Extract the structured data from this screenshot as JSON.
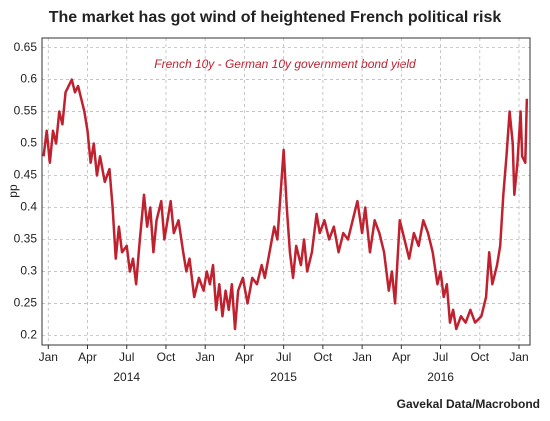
{
  "chart_data": {
    "type": "line",
    "title": "The market has got wind of heightened French political risk",
    "annotation": "French 10y - German 10y government bond yield",
    "ylabel": "pp",
    "source": "Gavekal Data/Macrobond",
    "x": [
      2013.97,
      2013.99,
      2014.01,
      2014.03,
      2014.05,
      2014.07,
      2014.09,
      2014.11,
      2014.13,
      2014.15,
      2014.17,
      2014.19,
      2014.21,
      2014.23,
      2014.25,
      2014.27,
      2014.29,
      2014.31,
      2014.33,
      2014.36,
      2014.39,
      2014.41,
      2014.43,
      2014.45,
      2014.47,
      2014.5,
      2014.52,
      2014.54,
      2014.56,
      2014.58,
      2014.61,
      2014.63,
      2014.65,
      2014.67,
      2014.69,
      2014.72,
      2014.74,
      2014.76,
      2014.78,
      2014.8,
      2014.83,
      2014.86,
      2014.88,
      2014.9,
      2014.93,
      2014.96,
      2014.99,
      2015.01,
      2015.03,
      2015.05,
      2015.07,
      2015.09,
      2015.11,
      2015.13,
      2015.15,
      2015.17,
      2015.19,
      2015.21,
      2015.24,
      2015.27,
      2015.3,
      2015.33,
      2015.36,
      2015.38,
      2015.41,
      2015.44,
      2015.46,
      2015.48,
      2015.5,
      2015.52,
      2015.54,
      2015.56,
      2015.58,
      2015.61,
      2015.63,
      2015.65,
      2015.68,
      2015.71,
      2015.73,
      2015.76,
      2015.79,
      2015.82,
      2015.85,
      2015.88,
      2015.91,
      2015.94,
      2015.97,
      2016.0,
      2016.02,
      2016.05,
      2016.08,
      2016.11,
      2016.14,
      2016.17,
      2016.19,
      2016.21,
      2016.24,
      2016.27,
      2016.3,
      2016.33,
      2016.36,
      2016.39,
      2016.42,
      2016.45,
      2016.48,
      2016.5,
      2016.52,
      2016.54,
      2016.56,
      2016.58,
      2016.6,
      2016.63,
      2016.66,
      2016.69,
      2016.72,
      2016.76,
      2016.79,
      2016.81,
      2016.83,
      2016.86,
      2016.88,
      2016.9,
      2016.92,
      2016.94,
      2016.96,
      2016.97,
      2016.99,
      2017.01,
      2017.02,
      2017.04,
      2017.05
    ],
    "series": [
      {
        "name": "French 10y - German 10y government bond yield",
        "color": "#c0212f",
        "values": [
          0.48,
          0.52,
          0.47,
          0.52,
          0.5,
          0.55,
          0.53,
          0.58,
          0.59,
          0.6,
          0.58,
          0.59,
          0.57,
          0.55,
          0.52,
          0.47,
          0.5,
          0.45,
          0.48,
          0.44,
          0.46,
          0.4,
          0.32,
          0.37,
          0.33,
          0.34,
          0.3,
          0.32,
          0.28,
          0.34,
          0.42,
          0.37,
          0.4,
          0.33,
          0.38,
          0.41,
          0.35,
          0.38,
          0.41,
          0.36,
          0.38,
          0.33,
          0.3,
          0.32,
          0.26,
          0.29,
          0.27,
          0.3,
          0.28,
          0.31,
          0.24,
          0.28,
          0.23,
          0.27,
          0.24,
          0.28,
          0.21,
          0.27,
          0.29,
          0.25,
          0.29,
          0.28,
          0.31,
          0.29,
          0.33,
          0.37,
          0.35,
          0.42,
          0.49,
          0.4,
          0.33,
          0.29,
          0.34,
          0.31,
          0.35,
          0.3,
          0.33,
          0.39,
          0.36,
          0.38,
          0.35,
          0.37,
          0.33,
          0.36,
          0.35,
          0.38,
          0.41,
          0.36,
          0.4,
          0.33,
          0.38,
          0.36,
          0.33,
          0.27,
          0.3,
          0.25,
          0.38,
          0.35,
          0.32,
          0.36,
          0.34,
          0.38,
          0.36,
          0.33,
          0.28,
          0.3,
          0.26,
          0.28,
          0.22,
          0.24,
          0.21,
          0.23,
          0.22,
          0.24,
          0.22,
          0.23,
          0.26,
          0.33,
          0.28,
          0.31,
          0.34,
          0.42,
          0.48,
          0.55,
          0.5,
          0.42,
          0.47,
          0.55,
          0.48,
          0.47,
          0.57
        ]
      }
    ],
    "xlim": [
      2013.96,
      2017.07
    ],
    "xticks": [
      {
        "value": 2014.0,
        "label": "Jan"
      },
      {
        "value": 2014.25,
        "label": "Apr"
      },
      {
        "value": 2014.5,
        "label": "Jul"
      },
      {
        "value": 2014.75,
        "label": "Oct"
      },
      {
        "value": 2015.0,
        "label": "Jan"
      },
      {
        "value": 2015.25,
        "label": "Apr"
      },
      {
        "value": 2015.5,
        "label": "Jul"
      },
      {
        "value": 2015.75,
        "label": "Oct"
      },
      {
        "value": 2016.0,
        "label": "Jan"
      },
      {
        "value": 2016.25,
        "label": "Apr"
      },
      {
        "value": 2016.5,
        "label": "Jul"
      },
      {
        "value": 2016.75,
        "label": "Oct"
      },
      {
        "value": 2017.0,
        "label": "Jan"
      }
    ],
    "xyearlabels": [
      {
        "value": 2014.5,
        "label": "2014"
      },
      {
        "value": 2015.5,
        "label": "2015"
      },
      {
        "value": 2016.5,
        "label": "2016"
      }
    ],
    "ylim": [
      0.185,
      0.665
    ],
    "yticks": [
      0.2,
      0.25,
      0.3,
      0.35,
      0.4,
      0.45,
      0.5,
      0.55,
      0.6,
      0.65
    ],
    "grid": true
  }
}
